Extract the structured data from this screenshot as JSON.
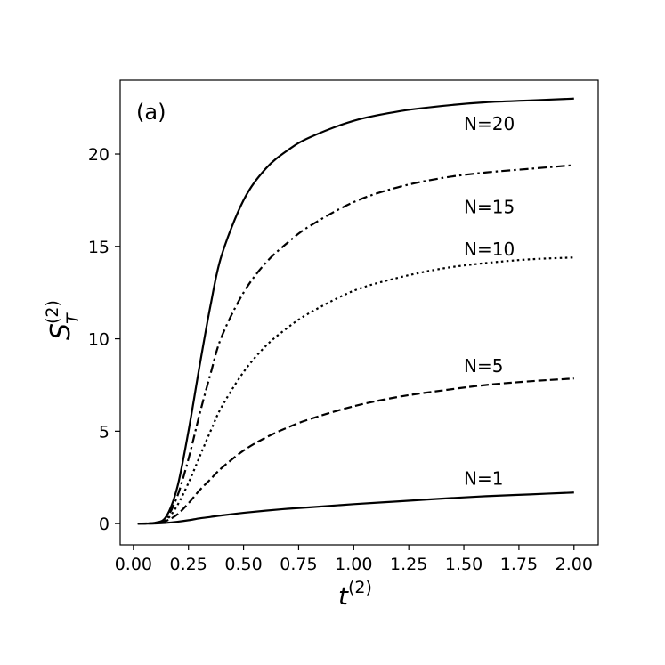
{
  "chart_data": {
    "type": "line",
    "panel_label": "(a)",
    "xlabel": {
      "base": "t",
      "sup": "(2)"
    },
    "ylabel": {
      "base": "S",
      "sub": "T",
      "sup": "(2)"
    },
    "xlim": [
      -0.06,
      2.11
    ],
    "ylim": [
      -1.15,
      24.0
    ],
    "x_ticks": [
      0.0,
      0.25,
      0.5,
      0.75,
      1.0,
      1.25,
      1.5,
      1.75,
      2.0
    ],
    "x_tick_labels": [
      "0.00",
      "0.25",
      "0.50",
      "0.75",
      "1.00",
      "1.25",
      "1.50",
      "1.75",
      "2.00"
    ],
    "y_ticks": [
      0,
      5,
      10,
      15,
      20
    ],
    "y_tick_labels": [
      "0",
      "5",
      "10",
      "15",
      "20"
    ],
    "grid": false,
    "line_color": "#000000",
    "x": [
      0.02,
      0.1,
      0.15,
      0.2,
      0.25,
      0.3,
      0.35,
      0.4,
      0.5,
      0.6,
      0.7,
      0.8,
      1.0,
      1.2,
      1.4,
      1.6,
      1.8,
      2.0
    ],
    "series": [
      {
        "name": "N=20",
        "style": "solid",
        "label_at": [
          1.5,
          21.3
        ],
        "values": [
          0,
          0.05,
          0.4,
          2.0,
          5.0,
          8.5,
          11.8,
          14.5,
          17.5,
          19.2,
          20.2,
          20.9,
          21.8,
          22.3,
          22.6,
          22.8,
          22.9,
          23.0
        ]
      },
      {
        "name": "N=15",
        "style": "dashdot",
        "label_at": [
          1.5,
          16.8
        ],
        "values": [
          0,
          0.04,
          0.3,
          1.5,
          3.5,
          5.9,
          8.1,
          10.1,
          12.5,
          14.1,
          15.2,
          16.1,
          17.4,
          18.2,
          18.7,
          19.0,
          19.2,
          19.4
        ]
      },
      {
        "name": "N=10",
        "style": "dotted",
        "label_at": [
          1.5,
          14.5
        ],
        "values": [
          0,
          0.03,
          0.2,
          1.0,
          2.2,
          3.6,
          5.0,
          6.3,
          8.2,
          9.6,
          10.6,
          11.4,
          12.6,
          13.3,
          13.8,
          14.1,
          14.3,
          14.4
        ]
      },
      {
        "name": "N=5",
        "style": "dashed",
        "label_at": [
          1.5,
          8.2
        ],
        "values": [
          0,
          0.02,
          0.15,
          0.5,
          1.1,
          1.8,
          2.4,
          3.0,
          3.95,
          4.65,
          5.2,
          5.65,
          6.35,
          6.85,
          7.2,
          7.5,
          7.7,
          7.85
        ]
      },
      {
        "name": "N=1",
        "style": "solid",
        "label_at": [
          1.5,
          2.1
        ],
        "values": [
          0,
          0.005,
          0.04,
          0.1,
          0.18,
          0.28,
          0.36,
          0.44,
          0.58,
          0.7,
          0.8,
          0.88,
          1.05,
          1.2,
          1.35,
          1.48,
          1.58,
          1.68
        ]
      }
    ]
  }
}
